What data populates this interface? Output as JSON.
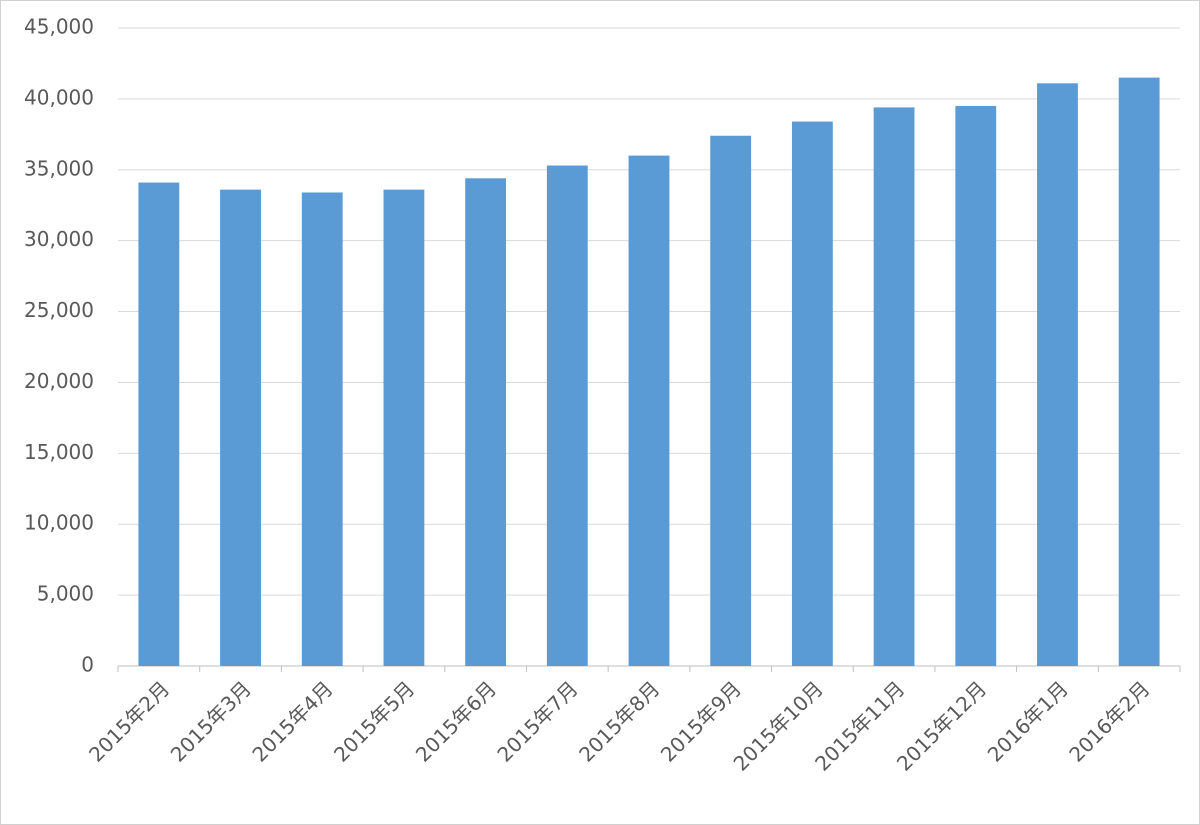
{
  "chart_data": {
    "type": "bar",
    "categories": [
      "2015年2月",
      "2015年3月",
      "2015年4月",
      "2015年5月",
      "2015年6月",
      "2015年7月",
      "2015年8月",
      "2015年9月",
      "2015年10月",
      "2015年11月",
      "2015年12月",
      "2016年1月",
      "2016年2月"
    ],
    "values": [
      34100,
      33600,
      33400,
      33600,
      34400,
      35300,
      36000,
      37400,
      38400,
      39400,
      39500,
      41100,
      41500
    ],
    "color": "#5b9bd5",
    "ylim": [
      0,
      45000
    ],
    "yticks": [
      0,
      {
        "value": 5000,
        "label": "5,000"
      },
      {
        "value": 10000,
        "label": "10,000"
      },
      {
        "value": 15000,
        "label": "15,000"
      },
      {
        "value": 20000,
        "label": "20,000"
      },
      {
        "value": 25000,
        "label": "25,000"
      },
      {
        "value": 30000,
        "label": "30,000"
      },
      {
        "value": 35000,
        "label": "35,000"
      },
      {
        "value": 40000,
        "label": "40,000"
      },
      {
        "value": 45000,
        "label": "45,000"
      }
    ],
    "grid": true
  }
}
